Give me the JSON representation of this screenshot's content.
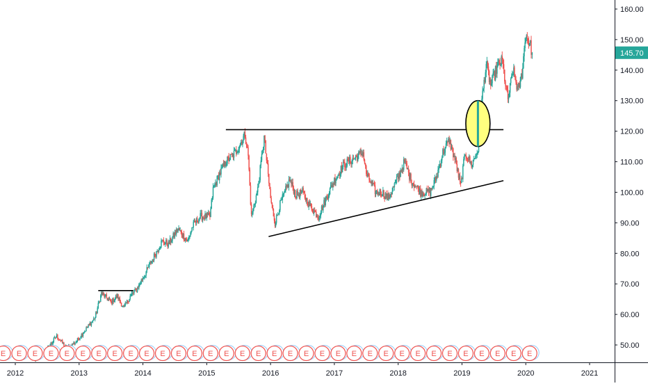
{
  "chart_data": {
    "type": "candlestick",
    "price_axis": {
      "ticks": [
        50,
        60,
        70,
        80,
        90,
        100,
        110,
        120,
        130,
        140,
        150,
        160
      ],
      "labels": [
        "50.00",
        "60.00",
        "70.00",
        "80.00",
        "90.00",
        "100.00",
        "110.00",
        "120.00",
        "130.00",
        "140.00",
        "150.00",
        "160.00"
      ],
      "ylim": [
        45,
        163
      ]
    },
    "time_axis": {
      "ticks": [
        2012,
        2013,
        2014,
        2015,
        2016,
        2017,
        2018,
        2019,
        2020,
        2021
      ],
      "labels": [
        "2012",
        "2013",
        "2014",
        "2015",
        "2016",
        "2017",
        "2018",
        "2019",
        "2020",
        "2021"
      ],
      "xlim": [
        2011.8,
        2021.3
      ]
    },
    "last_price": {
      "label": "145.70",
      "value": 145.7,
      "color": "#26a69a"
    },
    "colors": {
      "up": "#26a69a",
      "down": "#ef5350",
      "line": "#000000",
      "highlight_fill": "#ffff7f"
    },
    "price_path": [
      [
        2012.3,
        45
      ],
      [
        2012.45,
        47
      ],
      [
        2012.65,
        53
      ],
      [
        2012.8,
        49
      ],
      [
        2012.95,
        51
      ],
      [
        2013.1,
        55
      ],
      [
        2013.25,
        59
      ],
      [
        2013.35,
        67
      ],
      [
        2013.5,
        64
      ],
      [
        2013.6,
        66
      ],
      [
        2013.7,
        62
      ],
      [
        2013.8,
        66
      ],
      [
        2013.9,
        68
      ],
      [
        2014.0,
        72
      ],
      [
        2014.1,
        76
      ],
      [
        2014.2,
        80
      ],
      [
        2014.3,
        84
      ],
      [
        2014.4,
        83
      ],
      [
        2014.55,
        88
      ],
      [
        2014.7,
        84
      ],
      [
        2014.78,
        89
      ],
      [
        2014.9,
        92
      ],
      [
        2015.05,
        92
      ],
      [
        2015.1,
        101
      ],
      [
        2015.2,
        106
      ],
      [
        2015.3,
        110
      ],
      [
        2015.45,
        113
      ],
      [
        2015.6,
        119
      ],
      [
        2015.65,
        112
      ],
      [
        2015.7,
        92
      ],
      [
        2015.8,
        101
      ],
      [
        2015.9,
        118
      ],
      [
        2016.0,
        98
      ],
      [
        2016.07,
        90
      ],
      [
        2016.15,
        96
      ],
      [
        2016.3,
        104
      ],
      [
        2016.4,
        99
      ],
      [
        2016.5,
        100
      ],
      [
        2016.6,
        96
      ],
      [
        2016.75,
        92
      ],
      [
        2016.85,
        97
      ],
      [
        2017.0,
        104
      ],
      [
        2017.15,
        109
      ],
      [
        2017.3,
        111
      ],
      [
        2017.45,
        113
      ],
      [
        2017.5,
        106
      ],
      [
        2017.65,
        100
      ],
      [
        2017.75,
        100
      ],
      [
        2017.85,
        98
      ],
      [
        2018.0,
        105
      ],
      [
        2018.1,
        110
      ],
      [
        2018.2,
        104
      ],
      [
        2018.35,
        100
      ],
      [
        2018.5,
        100
      ],
      [
        2018.6,
        105
      ],
      [
        2018.7,
        113
      ],
      [
        2018.8,
        117
      ],
      [
        2018.9,
        110
      ],
      [
        2018.98,
        102
      ],
      [
        2019.05,
        113
      ],
      [
        2019.15,
        109
      ],
      [
        2019.25,
        114
      ],
      [
        2019.3,
        128
      ],
      [
        2019.38,
        142
      ],
      [
        2019.45,
        135
      ],
      [
        2019.55,
        141
      ],
      [
        2019.63,
        143
      ],
      [
        2019.72,
        130
      ],
      [
        2019.8,
        140
      ],
      [
        2019.88,
        133
      ],
      [
        2019.94,
        139
      ],
      [
        2020.0,
        152
      ],
      [
        2020.07,
        148
      ],
      [
        2020.1,
        145.7
      ]
    ],
    "drawings": {
      "resistance_line": {
        "x": [
          2015.3,
          2019.65
        ],
        "y": [
          120.5,
          120.5
        ]
      },
      "support_line": {
        "x": [
          2015.97,
          2019.65
        ],
        "y": [
          85.5,
          103.8
        ]
      },
      "small_resistance": {
        "x": [
          2013.3,
          2013.85
        ],
        "y": [
          67.8,
          67.8
        ]
      },
      "breakout_ellipse": {
        "x": 2019.25,
        "y": 122.5,
        "rx": 0.19,
        "ry": 7.5
      }
    },
    "earnings_marker": "E",
    "earnings_markers_x": [
      2011.81,
      2012.06,
      2012.31,
      2012.56,
      2012.81,
      2013.06,
      2013.31,
      2013.56,
      2013.81,
      2014.06,
      2014.31,
      2014.56,
      2014.81,
      2015.06,
      2015.31,
      2015.56,
      2015.81,
      2016.06,
      2016.31,
      2016.56,
      2016.81,
      2017.06,
      2017.31,
      2017.56,
      2017.81,
      2018.06,
      2018.31,
      2018.56,
      2018.81,
      2019.06,
      2019.31,
      2019.56,
      2019.81,
      2020.06
    ]
  }
}
